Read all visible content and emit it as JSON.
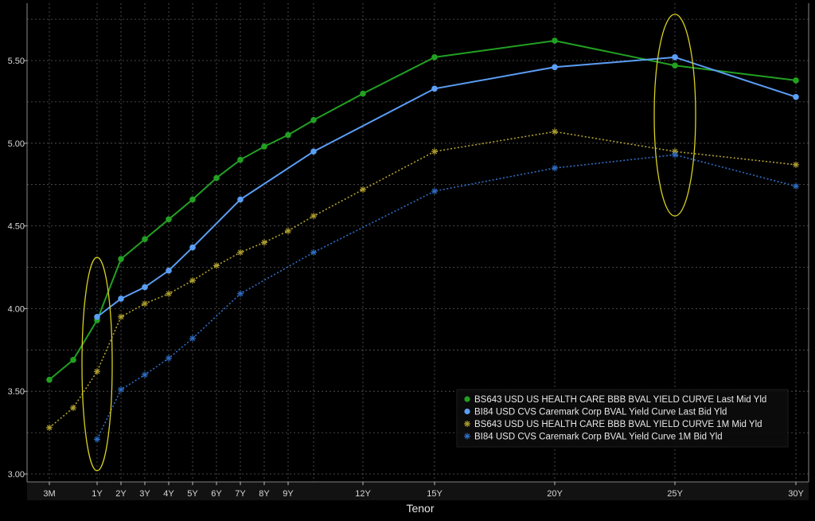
{
  "chart_data": {
    "type": "line",
    "xlabel": "Tenor",
    "ylabel": "",
    "ylim": [
      2.98,
      5.82
    ],
    "yticks": [
      "3.00",
      "3.50",
      "4.00",
      "4.50",
      "5.00",
      "5.50"
    ],
    "ytick_values": [
      3.0,
      3.5,
      4.0,
      4.5,
      5.0,
      5.5
    ],
    "xtick_labels": [
      "3M",
      "1Y",
      "2Y",
      "3Y",
      "4Y",
      "5Y",
      "6Y",
      "7Y",
      "8Y",
      "9Y",
      "12Y",
      "15Y",
      "20Y",
      "25Y",
      "30Y"
    ],
    "xtick_values": [
      0.25,
      1,
      2,
      3,
      4,
      5,
      6,
      7,
      8,
      9,
      12,
      15,
      20,
      25,
      30
    ],
    "x_scale": "tenor",
    "grid": true,
    "legend_position": "bottom-right",
    "series": [
      {
        "name": "BS643 USD US HEALTH CARE BBB BVAL YIELD CURVE Last Mid Yld",
        "color": "#22a022",
        "style": "solid-marker-circle",
        "points": [
          [
            0.25,
            3.57
          ],
          [
            0.5,
            3.69
          ],
          [
            1,
            3.93
          ],
          [
            2,
            4.3
          ],
          [
            3,
            4.42
          ],
          [
            4,
            4.54
          ],
          [
            5,
            4.66
          ],
          [
            6,
            4.79
          ],
          [
            7,
            4.9
          ],
          [
            8,
            4.98
          ],
          [
            9,
            5.05
          ],
          [
            10,
            5.14
          ],
          [
            12,
            5.3
          ],
          [
            15,
            5.52
          ],
          [
            20,
            5.62
          ],
          [
            25,
            5.47
          ],
          [
            30,
            5.38
          ]
        ]
      },
      {
        "name": "BI84 USD CVS Caremark Corp BVAL Yield Curve Last Bid Yld",
        "color": "#5b9ef5",
        "style": "solid-marker-circle",
        "points": [
          [
            1,
            3.95
          ],
          [
            2,
            4.06
          ],
          [
            3,
            4.13
          ],
          [
            4,
            4.23
          ],
          [
            5,
            4.37
          ],
          [
            7,
            4.66
          ],
          [
            10,
            4.95
          ],
          [
            15,
            5.33
          ],
          [
            20,
            5.46
          ],
          [
            25,
            5.52
          ],
          [
            30,
            5.28
          ]
        ]
      },
      {
        "name": "BS643 USD US HEALTH CARE BBB BVAL YIELD CURVE 1M Mid Yld",
        "color": "#b0a030",
        "style": "dotted-marker-star",
        "points": [
          [
            0.25,
            3.28
          ],
          [
            0.5,
            3.4
          ],
          [
            1,
            3.62
          ],
          [
            2,
            3.95
          ],
          [
            3,
            4.03
          ],
          [
            4,
            4.09
          ],
          [
            5,
            4.17
          ],
          [
            6,
            4.26
          ],
          [
            7,
            4.34
          ],
          [
            8,
            4.4
          ],
          [
            9,
            4.47
          ],
          [
            10,
            4.56
          ],
          [
            12,
            4.72
          ],
          [
            15,
            4.95
          ],
          [
            20,
            5.07
          ],
          [
            25,
            4.95
          ],
          [
            30,
            4.87
          ]
        ]
      },
      {
        "name": "BI84 USD CVS Caremark Corp BVAL Yield Curve 1M Bid Yld",
        "color": "#2f6ec4",
        "style": "dotted-marker-star",
        "points": [
          [
            1,
            3.21
          ],
          [
            2,
            3.51
          ],
          [
            3,
            3.6
          ],
          [
            4,
            3.7
          ],
          [
            5,
            3.82
          ],
          [
            7,
            4.09
          ],
          [
            10,
            4.34
          ],
          [
            15,
            4.71
          ],
          [
            20,
            4.85
          ],
          [
            25,
            4.93
          ],
          [
            30,
            4.74
          ]
        ]
      }
    ],
    "highlights": [
      {
        "x": 1,
        "y_range": [
          3.02,
          4.31
        ],
        "color": "#d8d020"
      },
      {
        "x": 25,
        "y_range": [
          4.56,
          5.78
        ],
        "color": "#d8d020"
      }
    ]
  }
}
